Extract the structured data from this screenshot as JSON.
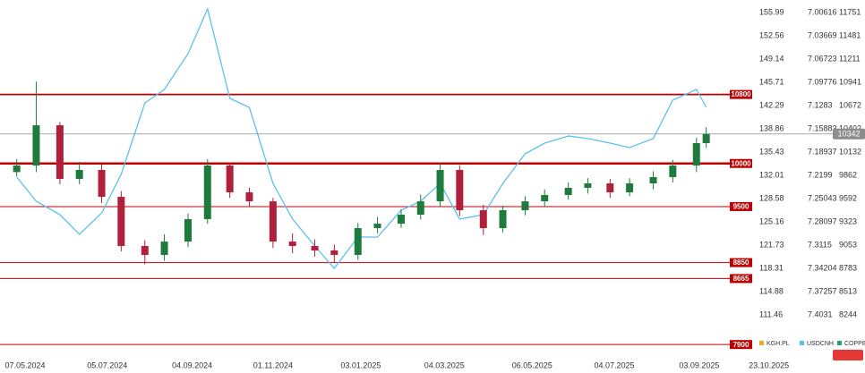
{
  "chart_data": {
    "type": "candlestick",
    "x": [
      "2024-05-01",
      "2024-05-15",
      "2024-06-01",
      "2024-06-15",
      "2024-07-01",
      "2024-07-15",
      "2024-08-01",
      "2024-08-15",
      "2024-09-01",
      "2024-09-15",
      "2024-10-01",
      "2024-10-15",
      "2024-11-01",
      "2024-11-15",
      "2024-12-01",
      "2024-12-15",
      "2025-01-01",
      "2025-01-15",
      "2025-02-01",
      "2025-02-15",
      "2025-03-01",
      "2025-03-15",
      "2025-04-01",
      "2025-04-15",
      "2025-05-01",
      "2025-05-15",
      "2025-06-01",
      "2025-06-15",
      "2025-07-01",
      "2025-07-15",
      "2025-08-01",
      "2025-08-15",
      "2025-09-01",
      "2025-09-08"
    ],
    "xlim": [
      "2024-04-19",
      "2025-10-11"
    ],
    "xticks": [
      {
        "value": "2024-05-07",
        "label": "07.05.2024"
      },
      {
        "value": "2024-07-05",
        "label": "05.07.2024"
      },
      {
        "value": "2024-09-04",
        "label": "04.09.2024"
      },
      {
        "value": "2024-11-01",
        "label": "01.11.2024"
      },
      {
        "value": "2025-01-03",
        "label": "03.01.2025"
      },
      {
        "value": "2025-03-04",
        "label": "04.03.2025"
      },
      {
        "value": "2025-05-06",
        "label": "06.05.2025"
      },
      {
        "value": "2025-07-04",
        "label": "04.07.2025"
      },
      {
        "value": "2025-09-03",
        "label": "03.09.2025"
      },
      {
        "value": "2025-10-23",
        "label": "23.10.2025"
      }
    ],
    "ylim": [
      105.13,
      157.83
    ],
    "yticks": [
      155.99,
      152.56,
      149.14,
      145.71,
      142.29,
      138.86,
      135.43,
      132.01,
      128.58,
      125.16,
      121.73,
      118.31,
      114.88,
      111.46
    ],
    "y2lim": [
      7.4595,
      6.98972
    ],
    "y2ticks": [
      7.00616,
      7.03669,
      7.06723,
      7.09776,
      7.1283,
      7.15883,
      7.18937,
      7.2199,
      7.25043,
      7.28097,
      7.3115,
      7.34204,
      7.37257,
      7.4031
    ],
    "y3lim": [
      7746,
      11896
    ],
    "y3ticks": [
      11751,
      11481,
      11211,
      10941,
      10672,
      10402,
      10132,
      9862,
      9592,
      9323,
      9053,
      8783,
      8513,
      8244
    ],
    "levels": [
      10800,
      10000,
      9500,
      8850,
      8665,
      7900
    ],
    "level_color": "#c00000",
    "series": [
      {
        "name": "COPPER",
        "type": "candlestick",
        "axis": "y3",
        "color": "#2e9e6a",
        "up_color": "#1f7a3e",
        "down_color": "#b0203a",
        "open": [
          9900,
          9976,
          10443,
          9821,
          9925,
          9613,
          9043,
          8939,
          9094,
          9354,
          9976,
          9665,
          9561,
          9094,
          9043,
          8991,
          8939,
          9250,
          9302,
          9406,
          9561,
          9925,
          9458,
          9250,
          9458,
          9561,
          9634,
          9717,
          9769,
          9665,
          9769,
          9842,
          9976,
          10236
        ],
        "high": [
          10050,
          10950,
          10480,
          10020,
          9990,
          9680,
          9110,
          9180,
          9420,
          10050,
          10010,
          9720,
          9600,
          9190,
          9120,
          9060,
          9310,
          9380,
          9470,
          9640,
          10010,
          9980,
          9520,
          9510,
          9620,
          9700,
          9780,
          9830,
          9820,
          9830,
          9910,
          10040,
          10300,
          10420
        ],
        "low": [
          9850,
          9900,
          9760,
          9760,
          9540,
          8980,
          8830,
          8870,
          9030,
          9300,
          9600,
          9500,
          9020,
          8960,
          8920,
          8850,
          8880,
          9190,
          9250,
          9350,
          9500,
          9390,
          9170,
          9200,
          9400,
          9500,
          9580,
          9650,
          9600,
          9620,
          9700,
          9780,
          9900,
          10180
        ],
        "close": [
          9976,
          10443,
          9821,
          9925,
          9613,
          9043,
          8939,
          9094,
          9354,
          9976,
          9665,
          9561,
          9094,
          9043,
          8991,
          8939,
          9250,
          9302,
          9406,
          9561,
          9925,
          9458,
          9250,
          9458,
          9561,
          9634,
          9717,
          9769,
          9665,
          9769,
          9842,
          9976,
          10236,
          10342
        ]
      },
      {
        "name": "USDCNH",
        "type": "line",
        "axis": "y2",
        "color": "#5bc0f0",
        "values": [
          7.2222,
          7.254,
          7.2716,
          7.2974,
          7.2692,
          7.2187,
          7.1248,
          7.1072,
          7.0602,
          7.0015,
          7.1189,
          7.1306,
          7.2305,
          7.2774,
          7.3127,
          7.342,
          7.3009,
          7.3009,
          7.2657,
          7.254,
          7.2305,
          7.2774,
          7.2716,
          7.2305,
          7.1917,
          7.1776,
          7.1682,
          7.1717,
          7.1776,
          7.1835,
          7.1717,
          7.1213,
          7.1072,
          7.1306
        ]
      },
      {
        "name": "KGH.PL",
        "type": "hidden",
        "axis": "y",
        "color": "#f5a623"
      }
    ]
  }
}
